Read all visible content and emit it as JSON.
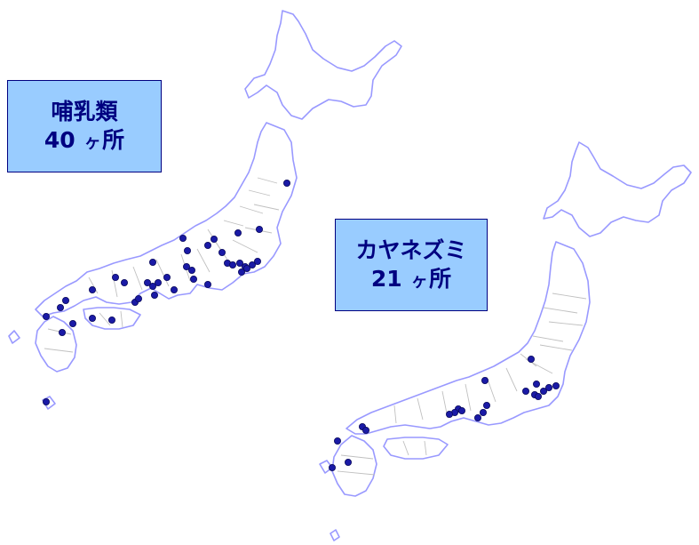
{
  "panels": [
    {
      "id": "left",
      "label": {
        "taxon": "哺乳類",
        "count": "40",
        "unit_ke": "ヶ",
        "unit_sho": "所"
      },
      "site_count": 40
    },
    {
      "id": "right",
      "label": {
        "taxon": "カヤネズミ",
        "count": "21",
        "unit_ke": "ヶ",
        "unit_sho": "所"
      },
      "site_count": 21
    }
  ],
  "colors": {
    "coastline": "#9999ff",
    "prefecture_border": "#c0c0c0",
    "site_marker": "#1a1aa6",
    "label_fill": "#99ccff",
    "label_text": "#000080"
  }
}
